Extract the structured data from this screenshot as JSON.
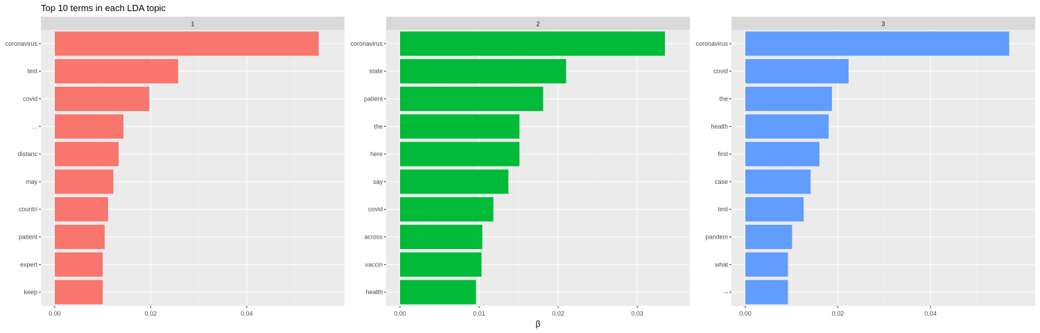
{
  "chart_data": {
    "type": "bar",
    "orientation": "horizontal",
    "title": "Top 10 terms in each LDA topic",
    "xlabel": "β",
    "ylabel": "",
    "grid": true,
    "legend": "none",
    "facets": [
      {
        "label": "1",
        "color": "#F8766D",
        "xlim": [
          0,
          0.0575
        ],
        "xticks": [
          0,
          0.02,
          0.04
        ],
        "xtick_labels": [
          "0.00",
          "0.02",
          "0.04"
        ],
        "categories": [
          "coronavirus",
          "test",
          "covid",
          "…",
          "distanc",
          "may",
          "countri",
          "patient",
          "expert",
          "keep"
        ],
        "values": [
          0.055,
          0.0257,
          0.0197,
          0.0143,
          0.0133,
          0.0122,
          0.0111,
          0.0104,
          0.01,
          0.01
        ]
      },
      {
        "label": "2",
        "color": "#00BA38",
        "xlim": [
          0,
          0.0349
        ],
        "xticks": [
          0,
          0.01,
          0.02,
          0.03
        ],
        "xtick_labels": [
          "0.00",
          "0.01",
          "0.02",
          "0.03"
        ],
        "categories": [
          "coronavirus",
          "state",
          "patient",
          "the",
          "here",
          "say",
          "covid",
          "across",
          "vaccin",
          "health"
        ],
        "values": [
          0.0335,
          0.021,
          0.0181,
          0.0151,
          0.0151,
          0.0137,
          0.0118,
          0.0104,
          0.0103,
          0.0096
        ]
      },
      {
        "label": "3",
        "color": "#619CFF",
        "xlim": [
          0,
          0.0596
        ],
        "xticks": [
          0,
          0.02,
          0.04
        ],
        "xtick_labels": [
          "0.00",
          "0.02",
          "0.04"
        ],
        "categories": [
          "coronavirus",
          "covid",
          "the",
          "health",
          "first",
          "case",
          "test",
          "pandem",
          "what",
          "–"
        ],
        "values": [
          0.057,
          0.0223,
          0.0187,
          0.018,
          0.016,
          0.0141,
          0.0126,
          0.0101,
          0.0092,
          0.0092
        ]
      }
    ]
  }
}
